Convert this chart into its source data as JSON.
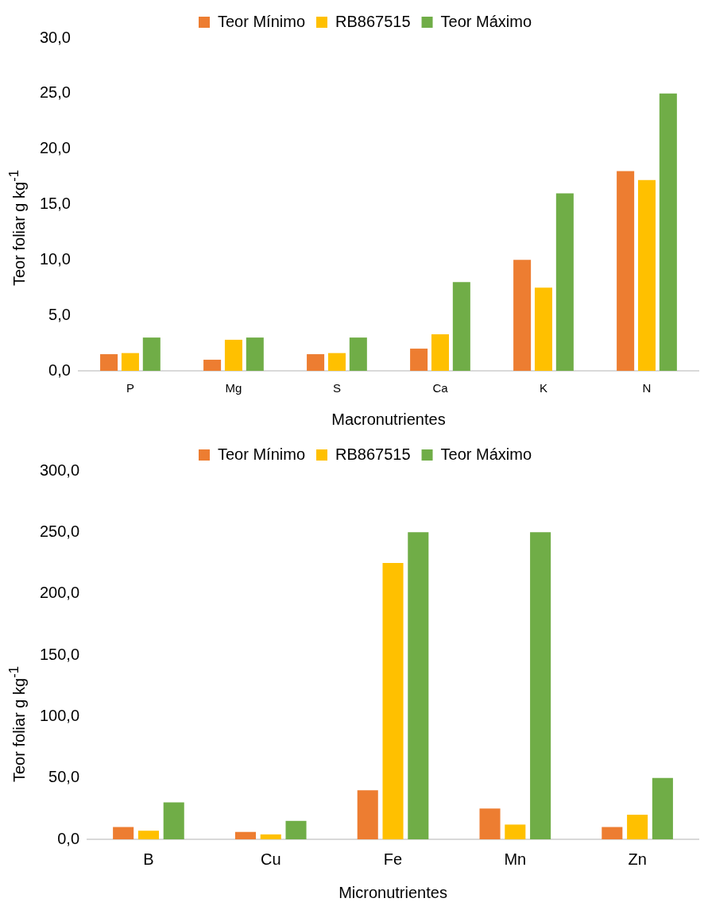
{
  "chart_data": [
    {
      "type": "bar",
      "xlabel": "Macronutrientes",
      "ylabel": "Teor foliar g kg$^{-1}$",
      "categories": [
        "P",
        "Mg",
        "S",
        "Ca",
        "K",
        "N"
      ],
      "series": [
        {
          "name": "Teor Mínimo",
          "color": "#ed7d31",
          "values": [
            1.5,
            1.0,
            1.5,
            2.0,
            10.0,
            18.0
          ]
        },
        {
          "name": "RB867515",
          "color": "#ffc000",
          "values": [
            1.6,
            2.8,
            1.6,
            3.3,
            7.5,
            17.2
          ]
        },
        {
          "name": "Teor Máximo",
          "color": "#70ad47",
          "values": [
            3.0,
            3.0,
            3.0,
            8.0,
            16.0,
            25.0
          ]
        }
      ],
      "ylim": [
        0,
        30
      ],
      "yticks": [
        {
          "value": 0,
          "label": "0,0"
        },
        {
          "value": 5,
          "label": "5,0"
        },
        {
          "value": 10,
          "label": "10,0"
        },
        {
          "value": 15,
          "label": "15,0"
        },
        {
          "value": 20,
          "label": "20,0"
        },
        {
          "value": 25,
          "label": "25,0"
        },
        {
          "value": 30,
          "label": "30,0"
        }
      ],
      "legend": "top",
      "grid": false
    },
    {
      "type": "bar",
      "xlabel": "Micronutrientes",
      "ylabel": "Teor foliar g kg$^{-1}$",
      "categories": [
        "B",
        "Cu",
        "Fe",
        "Mn",
        "Zn"
      ],
      "series": [
        {
          "name": "Teor Mínimo",
          "color": "#ed7d31",
          "values": [
            10,
            6,
            40,
            25,
            10
          ]
        },
        {
          "name": "RB867515",
          "color": "#ffc000",
          "values": [
            7,
            4,
            225,
            12,
            20
          ]
        },
        {
          "name": "Teor Máximo",
          "color": "#70ad47",
          "values": [
            30,
            15,
            250,
            250,
            50
          ]
        }
      ],
      "ylim": [
        0,
        300
      ],
      "yticks": [
        {
          "value": 0,
          "label": "0,0"
        },
        {
          "value": 50,
          "label": "50,0"
        },
        {
          "value": 100,
          "label": "100,0"
        },
        {
          "value": 150,
          "label": "150,0"
        },
        {
          "value": 200,
          "label": "200,0"
        },
        {
          "value": 250,
          "label": "250,0"
        },
        {
          "value": 300,
          "label": "300,0"
        }
      ],
      "legend": "top",
      "grid": false
    }
  ]
}
